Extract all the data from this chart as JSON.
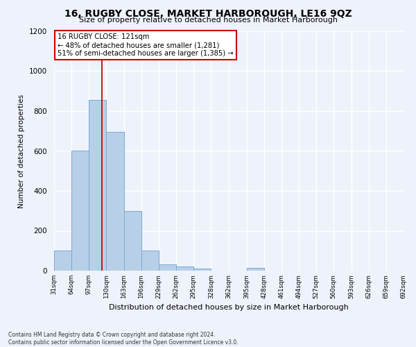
{
  "title": "16, RUGBY CLOSE, MARKET HARBOROUGH, LE16 9QZ",
  "subtitle": "Size of property relative to detached houses in Market Harborough",
  "xlabel": "Distribution of detached houses by size in Market Harborough",
  "ylabel": "Number of detached properties",
  "footer_line1": "Contains HM Land Registry data © Crown copyright and database right 2024.",
  "footer_line2": "Contains public sector information licensed under the Open Government Licence v3.0.",
  "bin_edges": [
    31,
    64,
    97,
    130,
    163,
    196,
    229,
    262,
    295,
    328,
    362,
    395,
    428,
    461,
    494,
    527,
    560,
    593,
    626,
    659,
    692
  ],
  "bar_heights": [
    100,
    600,
    855,
    695,
    300,
    100,
    30,
    22,
    10,
    0,
    0,
    15,
    0,
    0,
    0,
    0,
    0,
    0,
    0,
    0
  ],
  "bar_color": "#b8cfe8",
  "bar_edge_color": "#7aaad0",
  "background_color": "#eef2fb",
  "grid_color": "#ffffff",
  "red_line_x": 121,
  "annotation_text_line1": "16 RUGBY CLOSE: 121sqm",
  "annotation_text_line2": "← 48% of detached houses are smaller (1,281)",
  "annotation_text_line3": "51% of semi-detached houses are larger (1,385) →",
  "annotation_box_color": "#ffffff",
  "annotation_box_edge_color": "#cc0000",
  "ylim": [
    0,
    1200
  ],
  "yticks": [
    0,
    200,
    400,
    600,
    800,
    1000,
    1200
  ]
}
